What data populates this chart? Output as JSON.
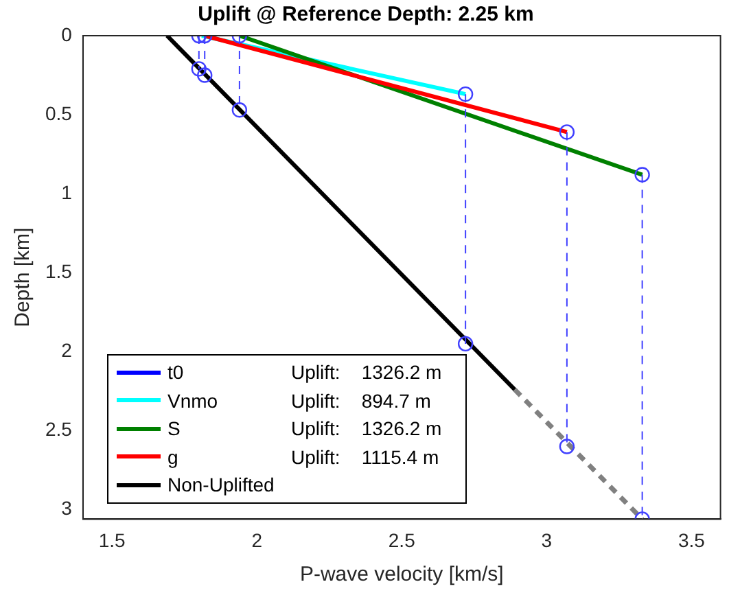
{
  "chart_data": {
    "type": "line",
    "title": "Uplift @ Reference Depth: 2.25 km",
    "xlabel": "P-wave velocity [km/s]",
    "ylabel": "Depth [km]",
    "xlim": [
      1.4,
      3.6
    ],
    "xticks": [
      1.5,
      2,
      2.5,
      3,
      3.5
    ],
    "ylim": [
      3.06,
      0
    ],
    "yticks": [
      0,
      0.5,
      1,
      1.5,
      2,
      2.5,
      3
    ],
    "grid": false,
    "legend": "bottom left",
    "line_style": "solid",
    "marker": "none",
    "annotations": [
      "Uplift:    1326.2 m",
      "Uplift:    894.7 m",
      "Uplift:    1326.2 m",
      "Uplift:    1115.4 m"
    ],
    "series": [
      {
        "name": "t0",
        "color": "#0000ff"
      },
      {
        "name": "Vnmo",
        "color": "#00ffff",
        "x": [
          1.81,
          2.72
        ],
        "values": [
          0,
          0.37
        ]
      },
      {
        "name": "S",
        "color": "#008000",
        "x": [
          1.94,
          3.33
        ],
        "values": [
          0,
          0.88
        ]
      },
      {
        "name": "g",
        "color": "#ff0000",
        "x": [
          1.82,
          3.07
        ],
        "values": [
          0,
          0.61
        ]
      },
      {
        "name": "Non-Uplifted",
        "color": "#000000",
        "x": [
          1.69,
          2.89
        ],
        "values": [
          0,
          2.24
        ]
      },
      {
        "color": "#808080",
        "line_style": "dashed",
        "x": [
          2.89,
          3.33
        ],
        "values": [
          2.24,
          3.06
        ]
      },
      {
        "color": "#4040ff",
        "line_style": "dashed",
        "x": [
          1.8,
          1.8
        ],
        "values": [
          0,
          0.21
        ]
      },
      {
        "color": "#4040ff",
        "line_style": "dashed",
        "x": [
          1.82,
          1.82
        ],
        "values": [
          0,
          0.25
        ]
      },
      {
        "color": "#4040ff",
        "line_style": "dashed",
        "x": [
          1.94,
          1.94
        ],
        "values": [
          0,
          0.47
        ]
      },
      {
        "color": "#4040ff",
        "line_style": "dashed",
        "x": [
          2.72,
          2.72
        ],
        "values": [
          0.37,
          1.95
        ]
      },
      {
        "color": "#4040ff",
        "line_style": "dashed",
        "x": [
          3.07,
          3.07
        ],
        "values": [
          0.61,
          2.6
        ]
      },
      {
        "color": "#4040ff",
        "line_style": "dashed",
        "x": [
          3.33,
          3.33
        ],
        "values": [
          0.88,
          3.06
        ]
      },
      {
        "type": "scatter",
        "marker": "circle",
        "color": "#4040ff",
        "x": [
          1.8,
          1.82,
          1.94,
          2.72,
          3.07,
          3.33,
          1.8,
          1.82,
          1.94,
          2.72,
          3.07,
          3.33
        ],
        "values": [
          0,
          0,
          0,
          0.37,
          0.61,
          0.88,
          0.21,
          0.25,
          0.47,
          1.95,
          2.6,
          3.06
        ]
      }
    ]
  }
}
